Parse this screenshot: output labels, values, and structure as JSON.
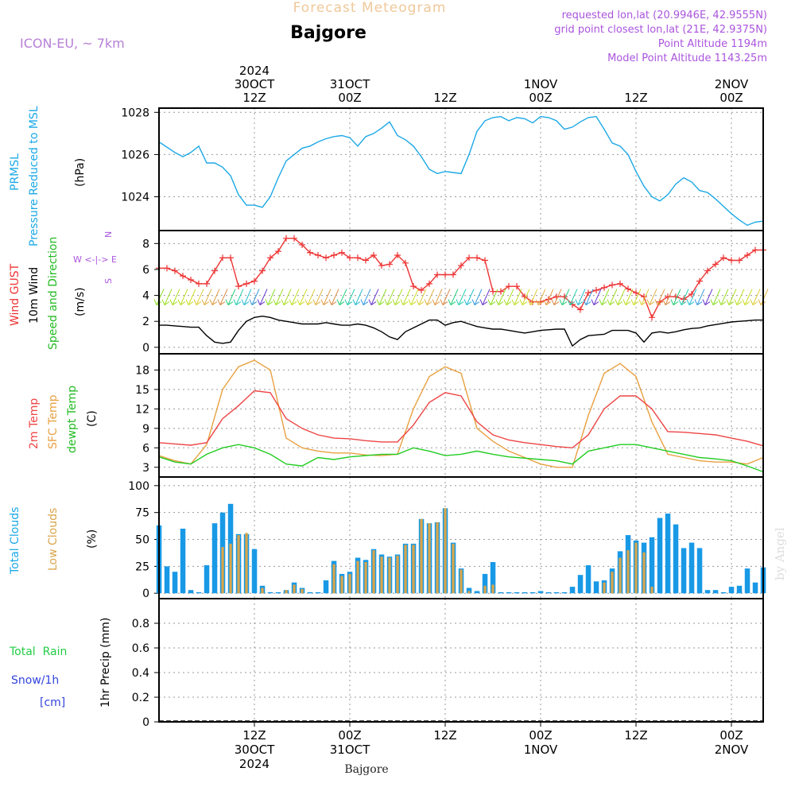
{
  "header": {
    "title": "Forecast Meteogram",
    "station": "Bajgore",
    "model": "ICON-EU, ~ 7km",
    "requested": "requested lon,lat (20.9946E, 42.9555N)",
    "gridpoint": "grid point closest lon,lat (21E, 42.9375N)",
    "point_alt": "Point Altitude 1194m",
    "model_alt": "Model Point Altitude 1143.25m",
    "footer_station": "Bajgore",
    "watermark": "by Angel"
  },
  "colors": {
    "pressure": "#1ba8e6",
    "gust": "#ee3333",
    "wind": "#000000",
    "temp2m": "#ee4444",
    "sfctemp": "#e8a040",
    "dewpt": "#22cc22",
    "total_clouds": "#1899e6",
    "low_clouds": "#d9a54a",
    "rain": "#22cc44",
    "snow": "#3344dd",
    "compass": "#aa55dd"
  },
  "time_axis": {
    "top_labels": [
      {
        "h": 12,
        "lines": [
          "2024",
          "30OCT",
          "12Z"
        ]
      },
      {
        "h": 24,
        "lines": [
          "31OCT",
          "00Z"
        ]
      },
      {
        "h": 36,
        "lines": [
          "12Z"
        ]
      },
      {
        "h": 48,
        "lines": [
          "1NOV",
          "00Z"
        ]
      },
      {
        "h": 60,
        "lines": [
          "12Z"
        ]
      },
      {
        "h": 72,
        "lines": [
          "2NOV",
          "00Z"
        ]
      }
    ],
    "bottom_labels": [
      {
        "h": 12,
        "lines": [
          "12Z",
          "30OCT",
          "2024"
        ]
      },
      {
        "h": 24,
        "lines": [
          "00Z",
          "31OCT"
        ]
      },
      {
        "h": 36,
        "lines": [
          "12Z"
        ]
      },
      {
        "h": 48,
        "lines": [
          "00Z",
          "1NOV"
        ]
      },
      {
        "h": 60,
        "lines": [
          "12Z"
        ]
      },
      {
        "h": 72,
        "lines": [
          "00Z",
          "2NOV"
        ]
      }
    ]
  },
  "panel_labels": {
    "pressure": {
      "line1": "PRMSL",
      "line2": "Pressure Reduced to MSL",
      "unit": "(hPa)"
    },
    "wind": {
      "gust": "Wind GUST",
      "wind": "10m Wind",
      "dir": "Speed and Direction",
      "unit": "(m/s)",
      "compass": [
        "N",
        "W <-|-> E",
        "S"
      ]
    },
    "temp": {
      "t2m": "2m Temp",
      "sfc": "SFC Temp",
      "dew": "dewpt Temp",
      "unit": "(C)"
    },
    "clouds": {
      "total": "Total Clouds",
      "low": "Low Clouds",
      "unit": "(%)"
    },
    "precip": {
      "rain": "Total  Rain",
      "snow": "Snow/1h",
      "snow_unit": "[cm]",
      "unit": "1hr Precip (mm)"
    }
  },
  "chart_data": [
    {
      "type": "line",
      "name": "pressure",
      "x_unit": "forecast hour",
      "x": [
        0,
        2,
        3,
        4,
        5,
        6,
        7,
        8,
        9,
        10,
        11,
        12,
        13,
        14,
        15,
        16,
        17,
        18,
        19,
        20,
        21,
        22,
        23,
        24,
        25,
        26,
        27,
        28,
        29,
        30,
        31,
        32,
        33,
        34,
        35,
        36,
        37,
        38,
        39,
        40,
        41,
        42,
        43,
        44,
        45,
        46,
        47,
        48,
        49,
        50,
        51,
        52,
        53,
        54,
        55,
        56,
        57,
        58,
        59,
        60,
        61,
        62,
        63,
        64,
        65,
        66,
        67,
        68,
        69,
        70,
        71,
        72,
        73,
        74,
        75,
        76
      ],
      "y": [
        1026.6,
        1026.1,
        1025.9,
        1026.1,
        1026.4,
        1025.6,
        1025.6,
        1025.4,
        1025.0,
        1024.1,
        1023.6,
        1023.6,
        1023.5,
        1024.0,
        1024.9,
        1025.7,
        1026.0,
        1026.3,
        1026.4,
        1026.6,
        1026.75,
        1026.85,
        1026.9,
        1026.8,
        1026.4,
        1026.85,
        1027.0,
        1027.25,
        1027.55,
        1026.9,
        1026.7,
        1026.4,
        1025.9,
        1025.3,
        1025.1,
        1025.2,
        1025.15,
        1025.1,
        1026.0,
        1027.1,
        1027.6,
        1027.75,
        1027.8,
        1027.6,
        1027.75,
        1027.7,
        1027.5,
        1027.8,
        1027.75,
        1027.6,
        1027.2,
        1027.3,
        1027.55,
        1027.75,
        1027.8,
        1027.2,
        1026.55,
        1026.4,
        1026.0,
        1025.2,
        1024.5,
        1024.0,
        1023.8,
        1024.1,
        1024.6,
        1024.9,
        1024.7,
        1024.3,
        1024.2,
        1023.9,
        1023.55,
        1023.2,
        1022.9,
        1022.65,
        1022.8,
        1022.85
      ],
      "ylim": [
        1022.4,
        1028.2
      ],
      "yticks": [
        1024,
        1026,
        1028
      ],
      "xlim": [
        0,
        76
      ]
    },
    {
      "type": "line",
      "name": "wind",
      "x": [
        0,
        1,
        2,
        3,
        4,
        5,
        6,
        7,
        8,
        9,
        10,
        11,
        12,
        13,
        14,
        15,
        16,
        17,
        18,
        19,
        20,
        21,
        22,
        23,
        24,
        25,
        26,
        27,
        28,
        29,
        30,
        31,
        32,
        33,
        34,
        35,
        36,
        37,
        38,
        39,
        40,
        41,
        42,
        43,
        44,
        45,
        46,
        47,
        48,
        49,
        50,
        51,
        52,
        53,
        54,
        55,
        56,
        57,
        58,
        59,
        60,
        61,
        62,
        63,
        64,
        65,
        66,
        67,
        68,
        69,
        70,
        71,
        72,
        73,
        74,
        75,
        76
      ],
      "series": [
        {
          "name": "Wind GUST",
          "values": [
            6.1,
            6.1,
            5.9,
            5.5,
            5.2,
            4.9,
            4.9,
            5.9,
            6.9,
            6.9,
            4.7,
            4.9,
            5.1,
            5.9,
            6.9,
            7.4,
            8.4,
            8.4,
            7.9,
            7.3,
            7.1,
            6.9,
            7.1,
            7.3,
            6.9,
            6.9,
            6.7,
            7.1,
            6.3,
            6.4,
            7.1,
            6.5,
            4.7,
            4.4,
            4.9,
            5.6,
            5.6,
            5.6,
            6.3,
            6.9,
            6.9,
            6.7,
            4.3,
            4.3,
            4.7,
            4.7,
            3.9,
            3.5,
            3.5,
            3.7,
            3.9,
            3.9,
            3.3,
            2.9,
            4.2,
            4.4,
            4.6,
            4.8,
            4.9,
            4.5,
            4.2,
            3.9,
            2.3,
            3.5,
            3.9,
            3.9,
            3.7,
            4.1,
            5.1,
            5.9,
            6.4,
            6.9,
            6.7,
            6.7,
            7.1,
            7.5,
            7.5
          ]
        },
        {
          "name": "10m Wind",
          "values": [
            1.7,
            1.7,
            1.65,
            1.6,
            1.55,
            1.55,
            0.9,
            0.4,
            0.3,
            0.4,
            1.3,
            2.0,
            2.3,
            2.4,
            2.3,
            2.1,
            2.0,
            1.9,
            1.8,
            1.8,
            1.8,
            1.9,
            1.8,
            1.7,
            1.7,
            1.8,
            1.7,
            1.5,
            1.2,
            0.8,
            0.6,
            1.2,
            1.5,
            1.8,
            2.1,
            2.1,
            1.7,
            1.9,
            2.0,
            1.8,
            1.6,
            1.5,
            1.4,
            1.4,
            1.3,
            1.2,
            1.1,
            1.2,
            1.3,
            1.35,
            1.4,
            1.4,
            0.1,
            0.6,
            0.9,
            0.95,
            1.0,
            1.3,
            1.3,
            1.3,
            1.1,
            0.4,
            1.1,
            1.2,
            1.1,
            1.2,
            1.35,
            1.45,
            1.5,
            1.65,
            1.75,
            1.85,
            1.95,
            2.0,
            2.05,
            2.1,
            2.1
          ]
        }
      ],
      "arrows_row_value": 4,
      "ylim": [
        -0.5,
        9
      ],
      "yticks": [
        0,
        2,
        4,
        6,
        8
      ],
      "xlim": [
        0,
        76
      ]
    },
    {
      "type": "line",
      "name": "temperature",
      "x": [
        0,
        2,
        4,
        6,
        8,
        10,
        12,
        14,
        16,
        18,
        20,
        22,
        24,
        26,
        28,
        30,
        32,
        34,
        36,
        38,
        40,
        42,
        44,
        46,
        48,
        50,
        52,
        54,
        56,
        58,
        60,
        62,
        64,
        66,
        68,
        70,
        72,
        74,
        76
      ],
      "series": [
        {
          "name": "2m Temp",
          "values": [
            6.8,
            6.6,
            6.4,
            6.8,
            10.5,
            12.5,
            14.8,
            14.5,
            10.5,
            9.0,
            8.0,
            7.5,
            7.4,
            7.1,
            6.9,
            6.9,
            9.5,
            13.0,
            14.5,
            14.0,
            10.0,
            8.0,
            7.2,
            6.8,
            6.5,
            6.2,
            6.0,
            8.0,
            12.0,
            14.0,
            14.0,
            12.0,
            8.5,
            8.4,
            8.2,
            8.0,
            7.5,
            7.0,
            6.3
          ]
        },
        {
          "name": "SFC Temp",
          "values": [
            4.8,
            4.0,
            3.5,
            6.5,
            15.0,
            18.5,
            19.5,
            18.0,
            7.5,
            6.0,
            5.5,
            5.2,
            5.2,
            4.9,
            4.8,
            5.0,
            12.0,
            17.0,
            18.5,
            17.5,
            9.0,
            7.0,
            5.5,
            4.5,
            3.5,
            3.0,
            3.0,
            11.0,
            17.5,
            19.0,
            17.0,
            10.0,
            5.0,
            4.5,
            4.0,
            3.8,
            3.8,
            3.5,
            4.5
          ]
        },
        {
          "name": "dewpt Temp",
          "values": [
            4.6,
            3.8,
            3.5,
            5.0,
            6.0,
            6.5,
            6.0,
            5.0,
            3.5,
            3.2,
            4.5,
            4.2,
            4.6,
            4.8,
            5.0,
            5.0,
            6.0,
            5.5,
            4.8,
            5.0,
            5.5,
            5.0,
            4.6,
            4.4,
            4.2,
            4.0,
            3.5,
            5.5,
            6.0,
            6.5,
            6.5,
            6.0,
            5.5,
            5.0,
            4.5,
            4.3,
            4.0,
            3.2,
            2.3
          ]
        }
      ],
      "ylim": [
        1.5,
        20.5
      ],
      "yticks": [
        3,
        6,
        9,
        12,
        15,
        18
      ],
      "xlim": [
        0,
        76
      ]
    },
    {
      "type": "bar",
      "name": "clouds",
      "x": [
        0,
        1,
        2,
        3,
        4,
        5,
        6,
        7,
        8,
        9,
        10,
        11,
        12,
        13,
        14,
        15,
        16,
        17,
        18,
        19,
        20,
        21,
        22,
        23,
        24,
        25,
        26,
        27,
        28,
        29,
        30,
        31,
        32,
        33,
        34,
        35,
        36,
        37,
        38,
        39,
        40,
        41,
        42,
        43,
        44,
        45,
        46,
        47,
        48,
        49,
        50,
        51,
        52,
        53,
        54,
        55,
        56,
        57,
        58,
        59,
        60,
        61,
        62,
        63,
        64,
        65,
        66,
        67,
        68,
        69,
        70,
        71,
        72,
        73,
        74,
        75,
        76
      ],
      "series": [
        {
          "name": "Total Clouds",
          "values": [
            63,
            25,
            20,
            60,
            3,
            1,
            26,
            65,
            75,
            83,
            55,
            55,
            41,
            7,
            1,
            1,
            3,
            10,
            5,
            1,
            1,
            12,
            30,
            18,
            20,
            33,
            31,
            41,
            36,
            34,
            36,
            46,
            46,
            69,
            65,
            66,
            79,
            47,
            23,
            5,
            2,
            18,
            29,
            1,
            1,
            1,
            1,
            1,
            2,
            1,
            1,
            1,
            6,
            17,
            26,
            11,
            12,
            23,
            39,
            54,
            49,
            47,
            52,
            70,
            74,
            64,
            42,
            47,
            42,
            3,
            3,
            1,
            6,
            7,
            23,
            10,
            24
          ]
        },
        {
          "name": "Low Clouds",
          "values": [
            0,
            0,
            0,
            0,
            0,
            0,
            0,
            0,
            43,
            46,
            54,
            56,
            0,
            5,
            0,
            0,
            3,
            8,
            4,
            0,
            0,
            0,
            27,
            16,
            18,
            30,
            29,
            40,
            34,
            33,
            35,
            45,
            45,
            69,
            65,
            66,
            79,
            46,
            22,
            2,
            0,
            7,
            8,
            0,
            0,
            0,
            0,
            0,
            0,
            0,
            0,
            0,
            0,
            0,
            0,
            0,
            10,
            20,
            33,
            40,
            47,
            38,
            6,
            0,
            0,
            0,
            0,
            0,
            0,
            0,
            0,
            0,
            0,
            0,
            0,
            0,
            0
          ]
        }
      ],
      "ylim": [
        -5,
        108
      ],
      "yticks": [
        0,
        25,
        50,
        75,
        100
      ],
      "xlim": [
        0,
        76
      ]
    },
    {
      "type": "bar",
      "name": "precipitation",
      "series": [
        {
          "name": "Total Rain",
          "values": []
        }
      ],
      "ylim": [
        0,
        1
      ],
      "yticks": [
        0,
        0.2,
        0.4,
        0.6,
        0.8
      ],
      "xlim": [
        0,
        76
      ]
    }
  ]
}
